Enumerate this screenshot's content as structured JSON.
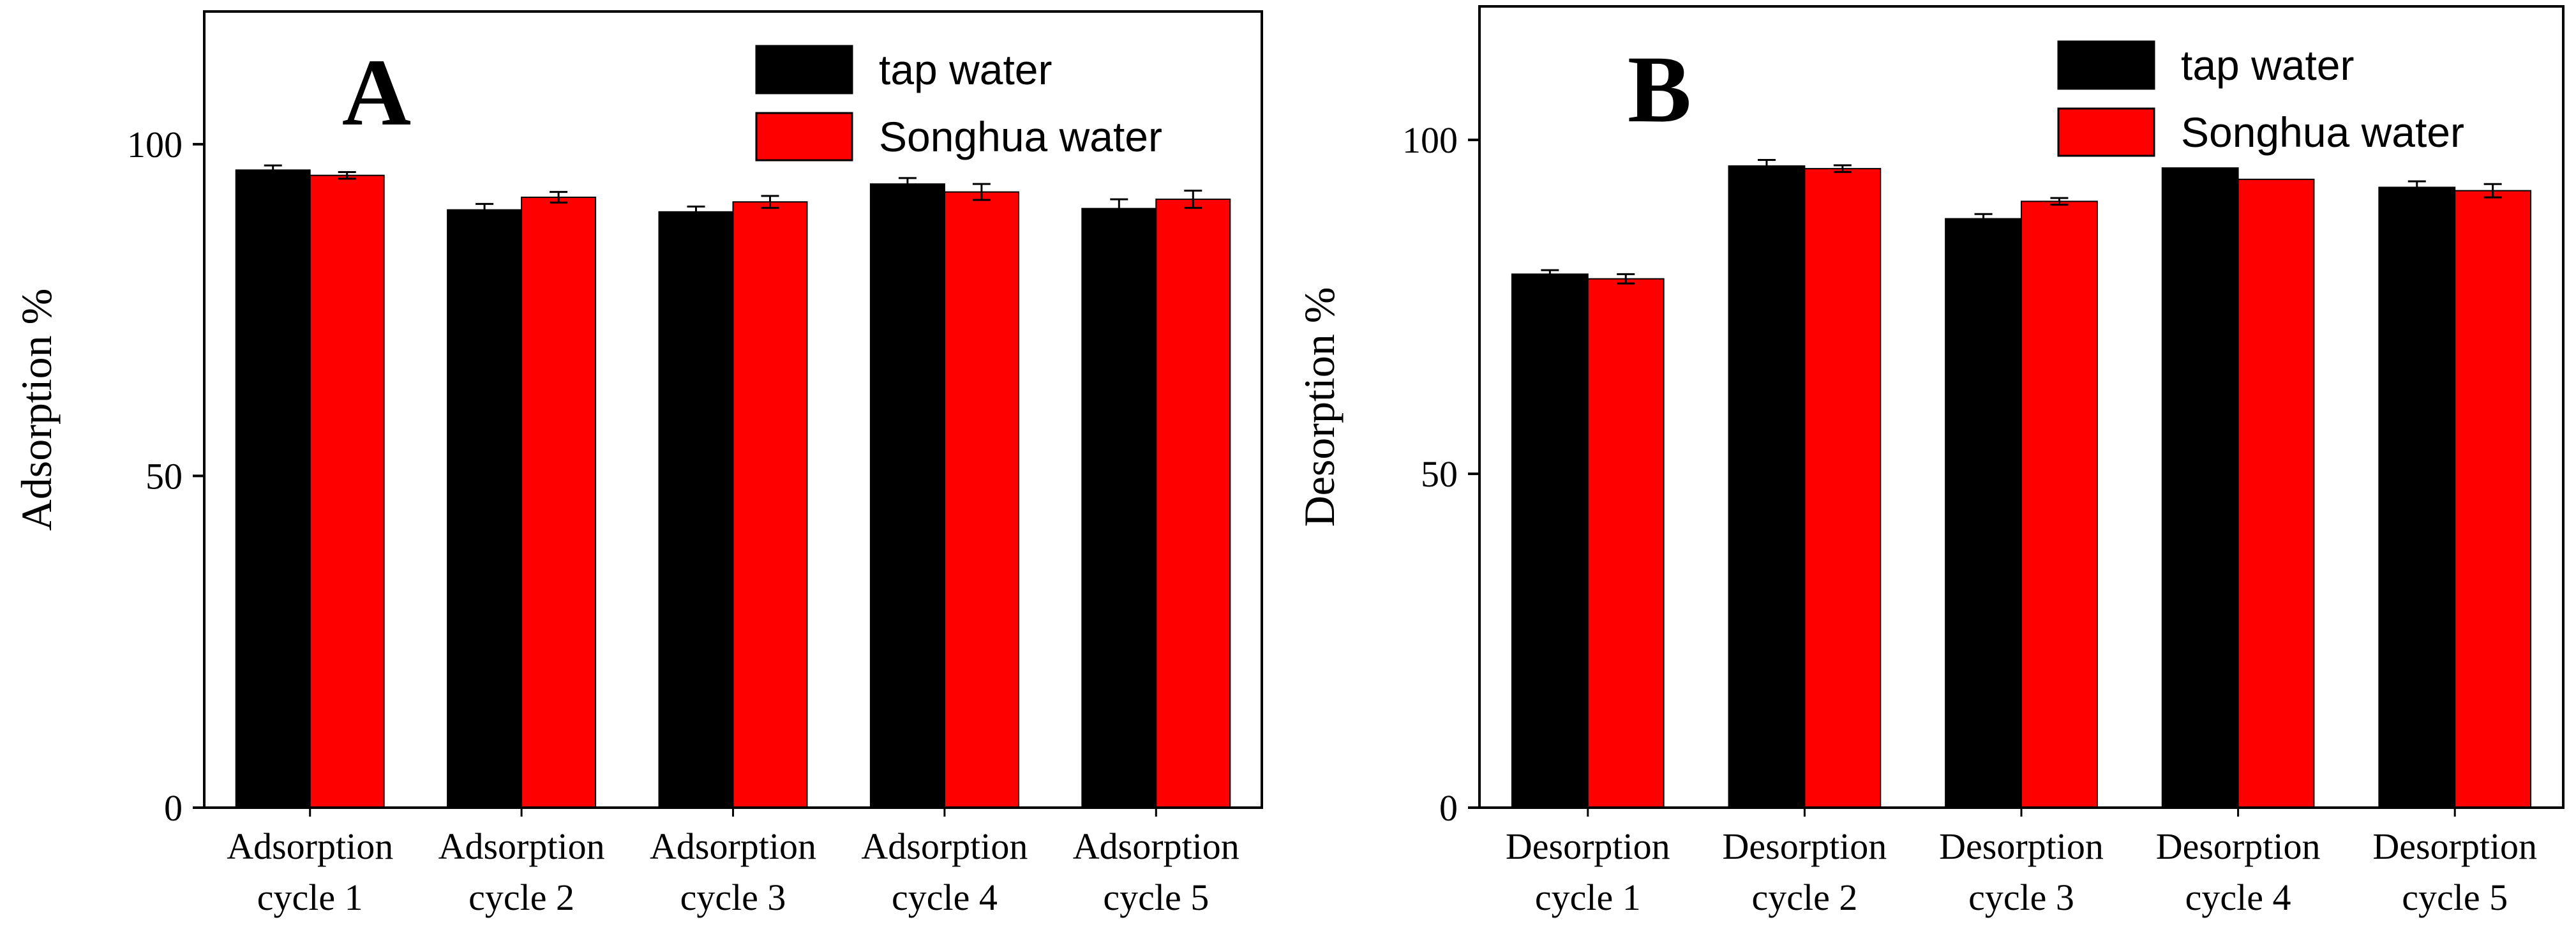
{
  "chart_data": [
    {
      "type": "bar",
      "panel_label": "A",
      "ylabel": "Adsorption %",
      "ylim": [
        0,
        120
      ],
      "yticks": [
        "0",
        "50",
        "100"
      ],
      "category_lines": [
        [
          "Adsorption",
          "cycle 1"
        ],
        [
          "Adsorption",
          "cycle 2"
        ],
        [
          "Adsorption",
          "cycle 3"
        ],
        [
          "Adsorption",
          "cycle 4"
        ],
        [
          "Adsorption",
          "cycle 5"
        ]
      ],
      "series": [
        {
          "name": "tap water",
          "color": "#000000",
          "values": [
            96.1,
            90.1,
            89.8,
            94.0,
            90.3
          ],
          "errors": [
            0.7,
            0.9,
            0.8,
            0.9,
            1.4
          ]
        },
        {
          "name": "Songhua water",
          "color": "#ff0000",
          "values": [
            95.3,
            92.0,
            91.3,
            92.8,
            91.7
          ],
          "errors": [
            0.5,
            0.8,
            0.9,
            1.2,
            1.3
          ]
        }
      ],
      "legend": "top-right"
    },
    {
      "type": "bar",
      "panel_label": "B",
      "ylabel": "Desorption %",
      "ylim": [
        0,
        120
      ],
      "yticks": [
        "0",
        "50",
        "100"
      ],
      "category_lines": [
        [
          "Desorption",
          "cycle 1"
        ],
        [
          "Desorption",
          "cycle 2"
        ],
        [
          "Desorption",
          "cycle 3"
        ],
        [
          "Desorption",
          "cycle 4"
        ],
        [
          "Desorption",
          "cycle 5"
        ]
      ],
      "series": [
        {
          "name": "tap water",
          "color": "#000000",
          "values": [
            79.9,
            96.1,
            88.2,
            95.8,
            92.9
          ],
          "errors": [
            0.6,
            0.9,
            0.7,
            0.0,
            0.9
          ]
        },
        {
          "name": "Songhua water",
          "color": "#ff0000",
          "values": [
            79.2,
            95.7,
            90.8,
            94.1,
            92.4
          ],
          "errors": [
            0.7,
            0.5,
            0.5,
            0.0,
            1.0
          ]
        }
      ],
      "legend": "top-right"
    }
  ]
}
